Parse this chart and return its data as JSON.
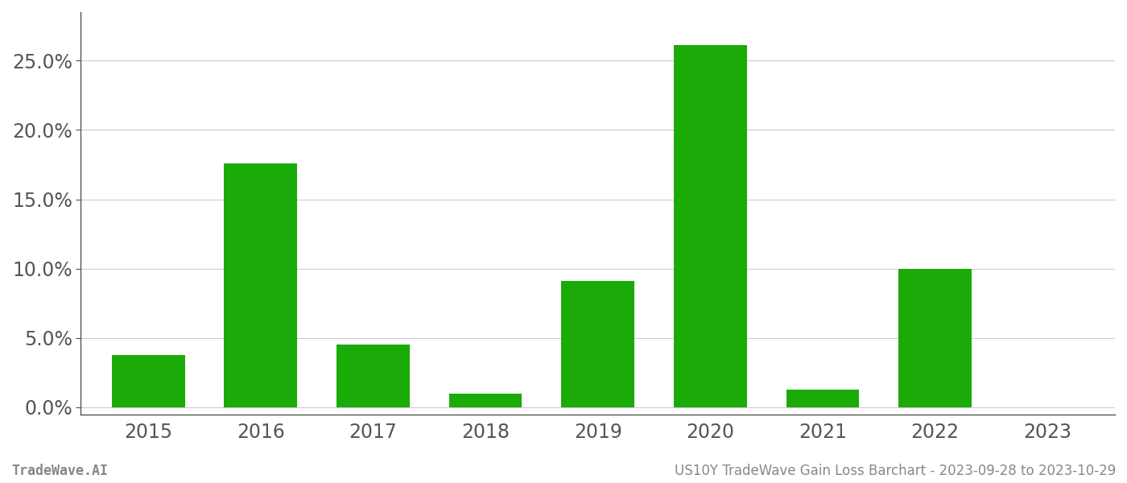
{
  "categories": [
    "2015",
    "2016",
    "2017",
    "2018",
    "2019",
    "2020",
    "2021",
    "2022",
    "2023"
  ],
  "values": [
    0.038,
    0.176,
    0.045,
    0.01,
    0.091,
    0.261,
    0.013,
    0.1,
    0.0
  ],
  "bar_color": "#1aab08",
  "background_color": "#ffffff",
  "grid_color": "#cccccc",
  "ylabel_ticks": [
    0.0,
    0.05,
    0.1,
    0.15,
    0.2,
    0.25
  ],
  "ylim": [
    -0.005,
    0.285
  ],
  "footer_left": "TradeWave.AI",
  "footer_right": "US10Y TradeWave Gain Loss Barchart - 2023-09-28 to 2023-10-29",
  "footer_color": "#888888",
  "footer_fontsize": 12,
  "tick_fontsize": 17,
  "spine_color": "#555555",
  "bar_width": 0.65
}
